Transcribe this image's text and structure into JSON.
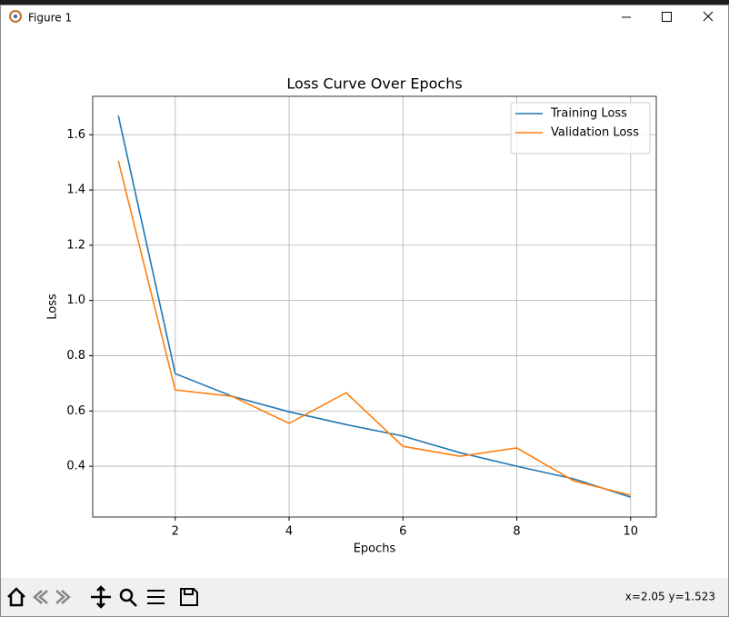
{
  "window": {
    "title": "Figure 1",
    "status": "x=2.05 y=1.523"
  },
  "chart_data": {
    "type": "line",
    "title": "Loss Curve Over Epochs",
    "x_label": "Epochs",
    "y_label": "Loss",
    "x": [
      1,
      2,
      3,
      4,
      5,
      6,
      7,
      8,
      9,
      10
    ],
    "series": [
      {
        "name": "Training Loss",
        "color": "#1f77b4",
        "values": [
          1.669,
          0.735,
          0.653,
          0.597,
          0.551,
          0.509,
          0.449,
          0.4,
          0.354,
          0.288
        ]
      },
      {
        "name": "Validation Loss",
        "color": "#ff7f0e",
        "values": [
          1.505,
          0.676,
          0.653,
          0.555,
          0.666,
          0.472,
          0.436,
          0.466,
          0.347,
          0.295
        ]
      }
    ],
    "xlim": [
      0.55,
      10.45
    ],
    "xticks": [
      2,
      4,
      6,
      8,
      10
    ],
    "ylim": [
      0.216,
      1.739
    ],
    "yticks": [
      0.4,
      0.6,
      0.8,
      {
        "value": 1,
        "label": "1.0"
      },
      1.2,
      1.4,
      1.6
    ],
    "grid": true,
    "legend": "upper right"
  }
}
